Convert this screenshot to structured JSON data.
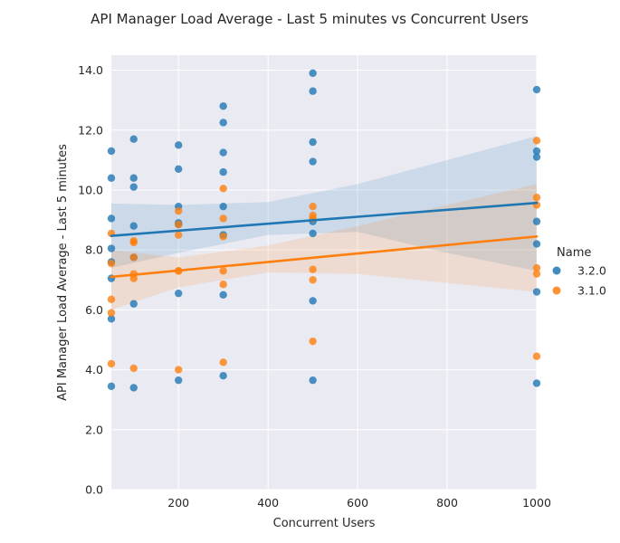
{
  "chart_data": {
    "type": "scatter",
    "title": "API Manager Load Average - Last 5 minutes vs Concurrent Users",
    "xlabel": "Concurrent Users",
    "ylabel": "API Manager Load Average - Last 5 minutes",
    "xlim": [
      50,
      1000
    ],
    "ylim": [
      0,
      14.5
    ],
    "xticks": [
      200,
      400,
      600,
      800,
      1000
    ],
    "yticks": [
      0,
      2,
      4,
      6,
      8,
      10,
      12,
      14
    ],
    "ytick_labels": [
      "0.0",
      "2.0",
      "4.0",
      "6.0",
      "8.0",
      "10.0",
      "12.0",
      "14.0"
    ],
    "grid": true,
    "legend_title": "Name",
    "legend_position": "right",
    "series": [
      {
        "name": "3.2.0",
        "color": "#1f77b4",
        "points": [
          [
            50,
            11.3
          ],
          [
            50,
            10.4
          ],
          [
            50,
            9.05
          ],
          [
            50,
            8.05
          ],
          [
            50,
            7.6
          ],
          [
            50,
            7.05
          ],
          [
            50,
            5.7
          ],
          [
            50,
            3.45
          ],
          [
            100,
            11.7
          ],
          [
            100,
            10.4
          ],
          [
            100,
            10.1
          ],
          [
            100,
            8.8
          ],
          [
            100,
            7.75
          ],
          [
            100,
            6.2
          ],
          [
            100,
            3.4
          ],
          [
            200,
            11.5
          ],
          [
            200,
            10.7
          ],
          [
            200,
            9.45
          ],
          [
            200,
            8.9
          ],
          [
            200,
            8.85
          ],
          [
            200,
            6.55
          ],
          [
            200,
            3.65
          ],
          [
            300,
            12.8
          ],
          [
            300,
            12.25
          ],
          [
            300,
            11.25
          ],
          [
            300,
            10.6
          ],
          [
            300,
            9.45
          ],
          [
            300,
            8.5
          ],
          [
            300,
            6.5
          ],
          [
            300,
            3.8
          ],
          [
            500,
            13.9
          ],
          [
            500,
            13.3
          ],
          [
            500,
            11.6
          ],
          [
            500,
            10.95
          ],
          [
            500,
            8.95
          ],
          [
            500,
            8.55
          ],
          [
            500,
            6.3
          ],
          [
            500,
            3.65
          ],
          [
            1000,
            13.35
          ],
          [
            1000,
            11.3
          ],
          [
            1000,
            11.1
          ],
          [
            1000,
            8.95
          ],
          [
            1000,
            8.2
          ],
          [
            1000,
            6.6
          ],
          [
            1000,
            3.55
          ]
        ],
        "trend": {
          "x": [
            50,
            1000
          ],
          "y": [
            8.47,
            9.57
          ]
        },
        "ci_upper": [
          [
            50,
            9.55
          ],
          [
            200,
            9.5
          ],
          [
            400,
            9.6
          ],
          [
            600,
            10.2
          ],
          [
            800,
            11.0
          ],
          [
            1000,
            11.8
          ]
        ],
        "ci_lower": [
          [
            50,
            7.4
          ],
          [
            200,
            7.9
          ],
          [
            400,
            8.5
          ],
          [
            600,
            8.6
          ],
          [
            800,
            7.9
          ],
          [
            1000,
            7.3
          ]
        ]
      },
      {
        "name": "3.1.0",
        "color": "#ff7f0e",
        "points": [
          [
            50,
            8.55
          ],
          [
            50,
            7.55
          ],
          [
            50,
            6.35
          ],
          [
            50,
            5.9
          ],
          [
            50,
            4.2
          ],
          [
            100,
            8.3
          ],
          [
            100,
            8.25
          ],
          [
            100,
            7.75
          ],
          [
            100,
            7.2
          ],
          [
            100,
            7.05
          ],
          [
            100,
            4.05
          ],
          [
            200,
            9.3
          ],
          [
            200,
            8.85
          ],
          [
            200,
            8.5
          ],
          [
            200,
            7.3
          ],
          [
            200,
            7.3
          ],
          [
            200,
            4.0
          ],
          [
            300,
            10.05
          ],
          [
            300,
            9.05
          ],
          [
            300,
            8.45
          ],
          [
            300,
            7.3
          ],
          [
            300,
            6.85
          ],
          [
            300,
            4.25
          ],
          [
            500,
            9.45
          ],
          [
            500,
            9.15
          ],
          [
            500,
            9.05
          ],
          [
            500,
            7.35
          ],
          [
            500,
            7.0
          ],
          [
            500,
            4.95
          ],
          [
            1000,
            11.65
          ],
          [
            1000,
            9.75
          ],
          [
            1000,
            9.5
          ],
          [
            1000,
            7.4
          ],
          [
            1000,
            7.2
          ],
          [
            1000,
            4.45
          ]
        ],
        "trend": {
          "x": [
            50,
            1000
          ],
          "y": [
            7.1,
            8.45
          ]
        },
        "ci_upper": [
          [
            50,
            8.0
          ],
          [
            200,
            7.75
          ],
          [
            400,
            8.15
          ],
          [
            600,
            8.8
          ],
          [
            800,
            9.5
          ],
          [
            1000,
            10.2
          ]
        ],
        "ci_lower": [
          [
            50,
            6.0
          ],
          [
            200,
            6.75
          ],
          [
            400,
            7.25
          ],
          [
            600,
            7.2
          ],
          [
            800,
            6.9
          ],
          [
            1000,
            6.6
          ]
        ]
      }
    ]
  }
}
